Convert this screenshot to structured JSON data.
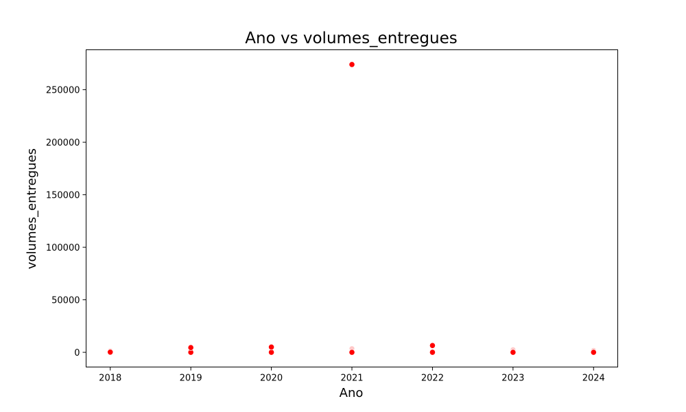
{
  "chart_data": {
    "type": "scatter",
    "title": "Ano vs volumes_entregues",
    "xlabel": "Ano",
    "ylabel": "volumes_entregues",
    "x_ticks": [
      2018,
      2019,
      2020,
      2021,
      2022,
      2023,
      2024
    ],
    "y_ticks": [
      0,
      50000,
      100000,
      150000,
      200000,
      250000
    ],
    "xlim": [
      2017.7,
      2024.3
    ],
    "ylim": [
      -14000,
      288000
    ],
    "grid": false,
    "legend": "none",
    "marker_color": "#ff0000",
    "faint_marker_color": "#ffc8c8",
    "points": [
      {
        "x": 2018,
        "y": 0
      },
      {
        "x": 2018,
        "y": 200
      },
      {
        "x": 2019,
        "y": 0
      },
      {
        "x": 2019,
        "y": 4500
      },
      {
        "x": 2020,
        "y": 0
      },
      {
        "x": 2020,
        "y": 5000
      },
      {
        "x": 2021,
        "y": 0
      },
      {
        "x": 2021,
        "y": 274000
      },
      {
        "x": 2022,
        "y": 0
      },
      {
        "x": 2022,
        "y": 6500
      },
      {
        "x": 2023,
        "y": 0
      },
      {
        "x": 2024,
        "y": 0
      }
    ],
    "faint_points": [
      {
        "x": 2018,
        "y": 1500
      },
      {
        "x": 2021,
        "y": 3500
      },
      {
        "x": 2023,
        "y": 2500
      },
      {
        "x": 2024,
        "y": 1800
      }
    ]
  }
}
